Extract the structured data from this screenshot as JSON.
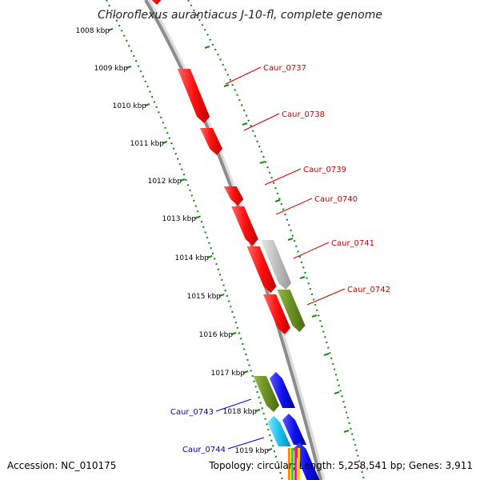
{
  "title": "Chloroflexus aurantiacus J-10-fl, complete genome",
  "footer": {
    "accession": "Accession: NC_010175",
    "summary": "Topology: circular; Length: 5,258,541 bp; Genes: 3,911"
  },
  "colors": {
    "forward_strand_gene": "#ff1010",
    "reverse_strand_gene": "#1010ee",
    "pseudo_gene": "#c0c0c0",
    "olive_gene": "#6b8e23",
    "cyan_gene": "#19c2ee",
    "backbone": "#8c8c8c",
    "scale_dots": "#1a8a1a",
    "label_forward": "#cc0000",
    "label_reverse": "#0000bb"
  },
  "ruler": {
    "ticks": [
      {
        "label": "1008 kbp"
      },
      {
        "label": "1009 kbp"
      },
      {
        "label": "1010 kbp"
      },
      {
        "label": "1011 kbp"
      },
      {
        "label": "1012 kbp"
      },
      {
        "label": "1013 kbp"
      },
      {
        "label": "1014 kbp"
      },
      {
        "label": "1015 kbp"
      },
      {
        "label": "1016 kbp"
      },
      {
        "label": "1017 kbp"
      },
      {
        "label": "1018 kbp"
      },
      {
        "label": "1019 kbp"
      }
    ]
  },
  "genes": [
    {
      "label": "Caur_0737",
      "strand": "forward"
    },
    {
      "label": "Caur_0738",
      "strand": "forward"
    },
    {
      "label": "Caur_0739",
      "strand": "forward"
    },
    {
      "label": "Caur_0740",
      "strand": "forward"
    },
    {
      "label": "Caur_0741",
      "strand": "forward"
    },
    {
      "label": "Caur_0742",
      "strand": "forward"
    },
    {
      "label": "Caur_0743",
      "strand": "reverse"
    },
    {
      "label": "Caur_0744",
      "strand": "reverse"
    }
  ]
}
